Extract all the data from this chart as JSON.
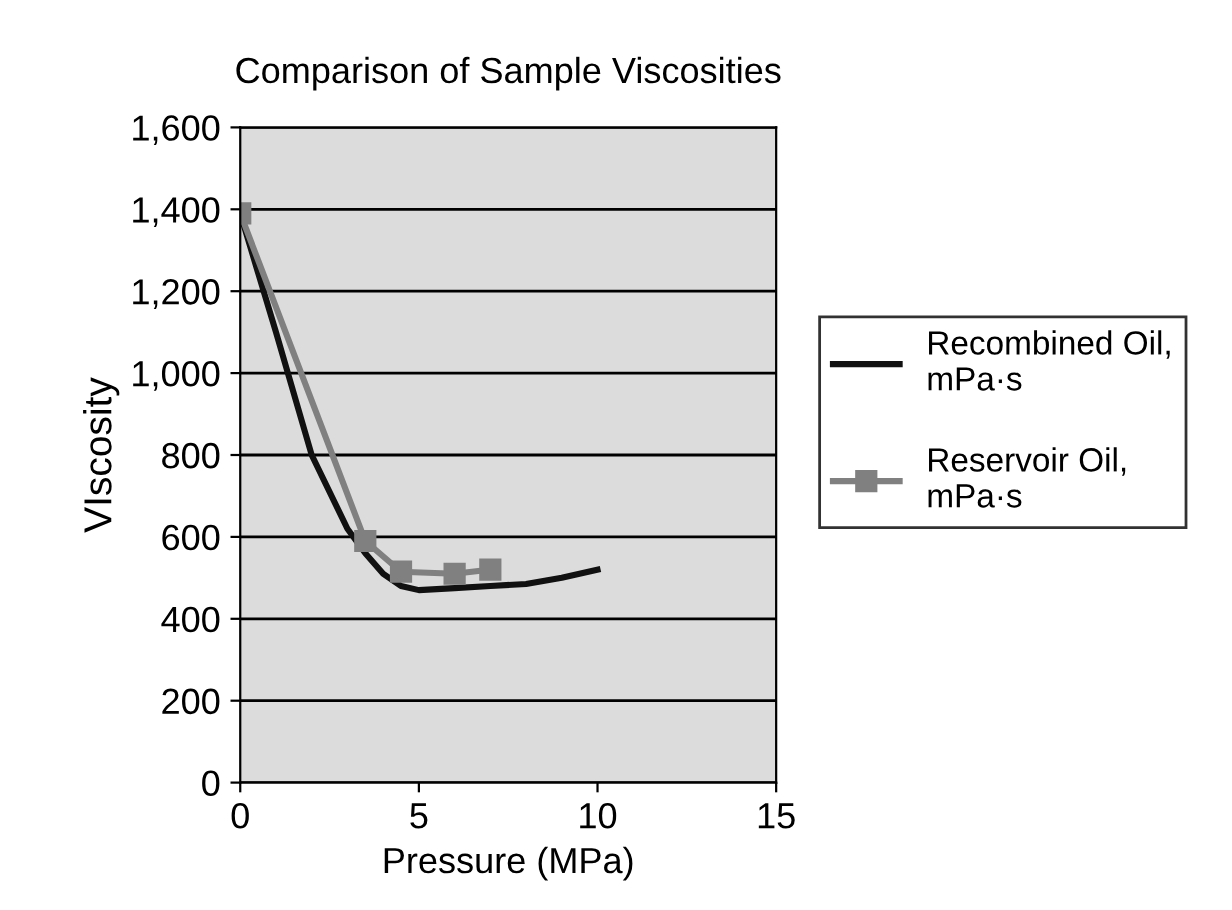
{
  "chart_data": {
    "type": "line",
    "title": "Comparison of Sample Viscosities",
    "xlabel": "Pressure (MPa)",
    "ylabel": "VIscosity",
    "xlim": [
      0,
      15
    ],
    "xticks": [
      0,
      5,
      10,
      15
    ],
    "ylim": [
      0,
      1600
    ],
    "yticks": [
      {
        "value": 0,
        "label": "0"
      },
      {
        "value": 200,
        "label": "200"
      },
      {
        "value": 400,
        "label": "400"
      },
      {
        "value": 600,
        "label": "600"
      },
      {
        "value": 800,
        "label": "800"
      },
      {
        "value": 1000,
        "label": "1,000"
      },
      {
        "value": 1200,
        "label": "1,200"
      },
      {
        "value": 1400,
        "label": "1,400"
      },
      {
        "value": 1600,
        "label": "1,600"
      }
    ],
    "grid": "y",
    "legend": "right",
    "series": [
      {
        "name": "Recombined Oil,\nmPa·s",
        "color": "#111111",
        "marker": "none",
        "x": [
          0,
          1,
          2,
          3,
          3.5,
          4,
          4.5,
          5,
          6,
          7,
          8,
          9,
          10
        ],
        "values": [
          1390,
          1100,
          800,
          620,
          560,
          510,
          480,
          470,
          475,
          480,
          485,
          500,
          520
        ]
      },
      {
        "name": "Reservoir Oil,\nmPa·s",
        "color": "#808080",
        "marker": "square",
        "x": [
          0,
          3.5,
          4.5,
          6,
          7
        ],
        "values": [
          1390,
          590,
          515,
          510,
          520
        ]
      }
    ]
  }
}
